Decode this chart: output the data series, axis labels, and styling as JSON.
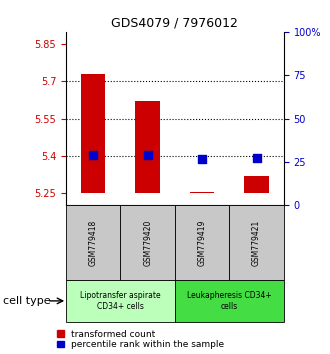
{
  "title": "GDS4079 / 7976012",
  "samples": [
    "GSM779418",
    "GSM779420",
    "GSM779419",
    "GSM779421"
  ],
  "red_values": [
    5.73,
    5.62,
    5.255,
    5.32
  ],
  "blue_values": [
    5.405,
    5.405,
    5.385,
    5.39
  ],
  "ylim_left": [
    5.2,
    5.9
  ],
  "ylim_right": [
    0,
    100
  ],
  "yticks_left": [
    5.25,
    5.4,
    5.55,
    5.7,
    5.85
  ],
  "yticks_right": [
    0,
    25,
    50,
    75,
    100
  ],
  "ytick_labels_left": [
    "5.25",
    "5.4",
    "5.55",
    "5.7",
    "5.85"
  ],
  "ytick_labels_right": [
    "0",
    "25",
    "50",
    "75",
    "100%"
  ],
  "hlines": [
    5.4,
    5.55,
    5.7
  ],
  "bar_color": "#cc0000",
  "dot_color": "#0000cc",
  "bar_baseline": 5.25,
  "bar_width": 0.45,
  "dot_size": 40,
  "groups": [
    {
      "label": "Lipotransfer aspirate\nCD34+ cells",
      "color": "#bbffbb",
      "samples": [
        0,
        1
      ]
    },
    {
      "label": "Leukapheresis CD34+\ncells",
      "color": "#44dd44",
      "samples": [
        2,
        3
      ]
    }
  ],
  "cell_type_label": "cell type",
  "legend_red": "transformed count",
  "legend_blue": "percentile rank within the sample",
  "background_color": "#ffffff",
  "sample_box_color": "#c8c8c8",
  "left_tick_color": "#cc0000",
  "right_tick_color": "#0000cc",
  "title_fontsize": 9,
  "tick_fontsize": 7,
  "sample_fontsize": 5.5,
  "group_fontsize": 5.5,
  "legend_fontsize": 6.5,
  "cell_type_fontsize": 8
}
